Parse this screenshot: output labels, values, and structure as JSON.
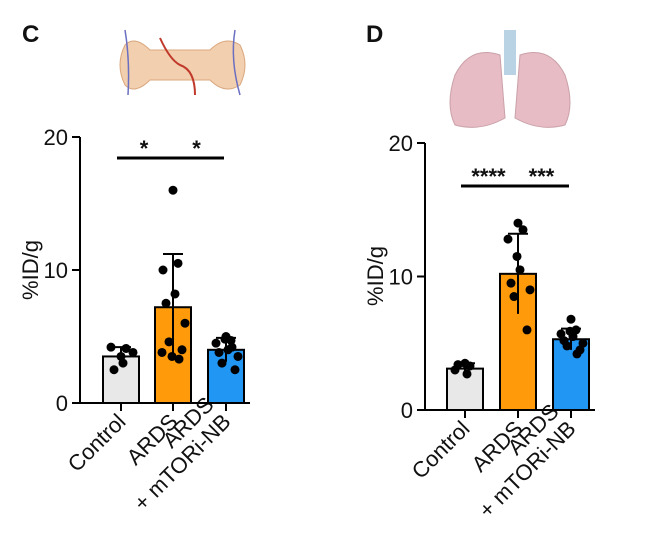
{
  "chart_data": [
    {
      "type": "bar",
      "panel": "C",
      "y_label": "%ID/g",
      "categories": [
        "Control",
        "ARDS",
        "ARDS\n+ mTORi-NB"
      ],
      "colors": [
        "#e8e8e8",
        "#ff9a0a",
        "#2196f3"
      ],
      "values": [
        3.5,
        7.2,
        4.0
      ],
      "errors": [
        0.7,
        4.0,
        0.9
      ],
      "points": [
        [
          3.5,
          4.1,
          4.2,
          3.0,
          2.5,
          3.8
        ],
        [
          16,
          10.5,
          10.0,
          8.2,
          7.5,
          6.0,
          4.6,
          4.0,
          3.5,
          3.3,
          3.8
        ],
        [
          5.0,
          4.7,
          4.5,
          4.0,
          3.8,
          3.5,
          3.0,
          2.5,
          4.8,
          4.2
        ]
      ],
      "ylim": [
        0,
        20
      ],
      "yticks": [
        0,
        10,
        20
      ],
      "significance": [
        {
          "text": "*",
          "from": 0,
          "to": 1
        },
        {
          "text": "*",
          "from": 1,
          "to": 2
        }
      ]
    },
    {
      "type": "bar",
      "panel": "D",
      "y_label": "%ID/g",
      "categories": [
        "Control",
        "ARDS",
        "ARDS\n+ mTORi-NB"
      ],
      "colors": [
        "#e8e8e8",
        "#ff9a0a",
        "#2196f3"
      ],
      "values": [
        3.1,
        10.2,
        5.3
      ],
      "errors": [
        0.4,
        3.0,
        0.8
      ],
      "points": [
        [
          3.5,
          3.3,
          3.0,
          2.7,
          3.4
        ],
        [
          14,
          13.5,
          12.8,
          10.5,
          9.5,
          9.0,
          8.5,
          6.0,
          11.5
        ],
        [
          6.8,
          6.0,
          5.7,
          5.5,
          5.2,
          5.0,
          4.8,
          4.5,
          5.9,
          4.2
        ]
      ],
      "ylim": [
        0,
        20
      ],
      "yticks": [
        0,
        10,
        20
      ],
      "significance": [
        {
          "text": "****",
          "from": 0,
          "to": 1
        },
        {
          "text": "***",
          "from": 1,
          "to": 2
        }
      ]
    }
  ]
}
